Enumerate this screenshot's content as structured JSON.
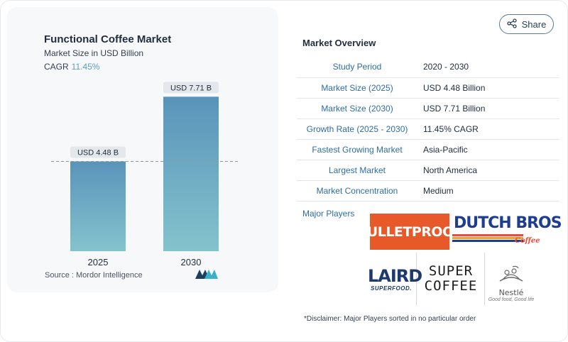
{
  "page": {
    "share_label": "Share",
    "share_icon": "share-icon"
  },
  "chart_card": {
    "title": "Functional Coffee Market",
    "subtitle": "Market Size in USD Billion",
    "cagr_label": "CAGR",
    "cagr_value": "11.45%",
    "source": "Source :  Mordor Intelligence",
    "logo_icon": "mordor-intelligence-logo"
  },
  "chart_data": {
    "type": "bar",
    "title": "Functional Coffee Market",
    "subtitle": "Market Size in USD Billion",
    "categories": [
      "2025",
      "2030"
    ],
    "values": [
      4.48,
      7.71
    ],
    "data_labels": [
      "USD 4.48 B",
      "USD 7.71 B"
    ],
    "ylim": [
      0,
      8.5
    ],
    "reference_line_value": 4.48,
    "grid": false,
    "colors": {
      "bar_top": "#5a93ba",
      "bar_bottom": "#84c3cd",
      "label_bg": "#e4e7eb"
    }
  },
  "overview": {
    "title": "Market Overview",
    "rows": [
      {
        "key": "Study Period",
        "value": "2020 - 2030"
      },
      {
        "key": "Market Size (2025)",
        "value": "USD 4.48 Billion"
      },
      {
        "key": "Market Size (2030)",
        "value": "USD 7.71 Billion"
      },
      {
        "key": "Growth Rate (2025 - 2030)",
        "value": "11.45% CAGR"
      },
      {
        "key": "Fastest Growing Market",
        "value": "Asia-Pacific"
      },
      {
        "key": "Largest Market",
        "value": "North America"
      },
      {
        "key": "Market Concentration",
        "value": "Medium"
      }
    ]
  },
  "players": {
    "title": "Major Players",
    "bulletproof": "BULLETPROOF",
    "dutch_bros": "DUTCH BROS",
    "dutch_bros_sub": "Coffee",
    "laird": "LAIRD",
    "laird_sub": "SUPERFOOD.",
    "super_line1": "SUPER",
    "super_line2": "COFFEE",
    "nestle": "Nestlé",
    "nestle_tag": "Good food, Good life",
    "disclaimer": "*Disclaimer: Major Players sorted in no particular order"
  }
}
